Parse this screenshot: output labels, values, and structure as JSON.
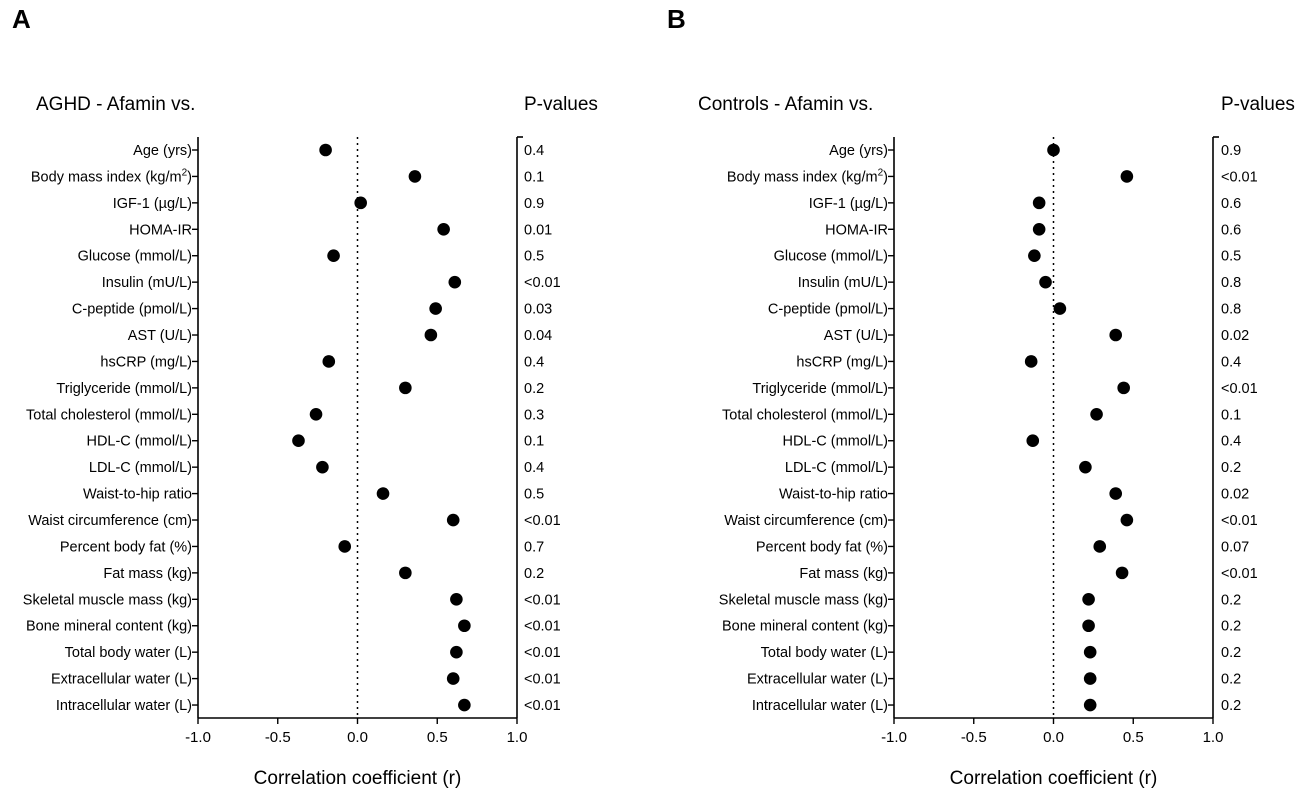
{
  "chart_data": [
    {
      "type": "scatter",
      "panel": "A",
      "title": "AGHD - Afamin vs.",
      "pvalues_header": "P-values",
      "xlabel": "Correlation coefficient (r)",
      "xlim": [
        -1.0,
        1.0
      ],
      "xticks": [
        "-1.0",
        "-0.5",
        "0.0",
        "0.5",
        "1.0"
      ],
      "categories": [
        "Age (yrs)",
        "Body mass index (kg/m²)",
        "IGF-1 (µg/L)",
        "HOMA-IR",
        "Glucose (mmol/L)",
        "Insulin (mU/L)",
        "C-peptide (pmol/L)",
        "AST (U/L)",
        "hsCRP (mg/L)",
        "Triglyceride (mmol/L)",
        "Total cholesterol (mmol/L)",
        "HDL-C (mmol/L)",
        "LDL-C (mmol/L)",
        "Waist-to-hip ratio",
        "Waist circumference (cm)",
        "Percent body fat (%)",
        "Fat mass (kg)",
        "Skeletal muscle mass (kg)",
        "Bone mineral content (kg)",
        "Total body water (L)",
        "Extracellular water (L)",
        "Intracellular water (L)"
      ],
      "values": [
        -0.2,
        0.36,
        0.02,
        0.54,
        -0.15,
        0.61,
        0.49,
        0.46,
        -0.18,
        0.3,
        -0.26,
        -0.37,
        -0.22,
        0.16,
        0.6,
        -0.08,
        0.3,
        0.62,
        0.67,
        0.62,
        0.6,
        0.67
      ],
      "pvalues": [
        "0.4",
        "0.1",
        "0.9",
        "0.01",
        "0.5",
        "<0.01",
        "0.03",
        "0.04",
        "0.4",
        "0.2",
        "0.3",
        "0.1",
        "0.4",
        "0.5",
        "<0.01",
        "0.7",
        "0.2",
        "<0.01",
        "<0.01",
        "<0.01",
        "<0.01",
        "<0.01"
      ]
    },
    {
      "type": "scatter",
      "panel": "B",
      "title": "Controls - Afamin vs.",
      "pvalues_header": "P-values",
      "xlabel": "Correlation coefficient (r)",
      "xlim": [
        -1.0,
        1.0
      ],
      "xticks": [
        "-1.0",
        "-0.5",
        "0.0",
        "0.5",
        "1.0"
      ],
      "categories": [
        "Age (yrs)",
        "Body mass index (kg/m²)",
        "IGF-1 (µg/L)",
        "HOMA-IR",
        "Glucose (mmol/L)",
        "Insulin (mU/L)",
        "C-peptide (pmol/L)",
        "AST (U/L)",
        "hsCRP (mg/L)",
        "Triglyceride (mmol/L)",
        "Total cholesterol (mmol/L)",
        "HDL-C (mmol/L)",
        "LDL-C (mmol/L)",
        "Waist-to-hip ratio",
        "Waist circumference (cm)",
        "Percent body fat (%)",
        "Fat mass (kg)",
        "Skeletal muscle mass (kg)",
        "Bone mineral content (kg)",
        "Total body water (L)",
        "Extracellular water (L)",
        "Intracellular water (L)"
      ],
      "values": [
        0.0,
        0.46,
        -0.09,
        -0.09,
        -0.12,
        -0.05,
        0.04,
        0.39,
        -0.14,
        0.44,
        0.27,
        -0.13,
        0.2,
        0.39,
        0.46,
        0.29,
        0.43,
        0.22,
        0.22,
        0.23,
        0.23,
        0.23
      ],
      "pvalues": [
        "0.9",
        "<0.01",
        "0.6",
        "0.6",
        "0.5",
        "0.8",
        "0.8",
        "0.02",
        "0.4",
        "<0.01",
        "0.1",
        "0.4",
        "0.2",
        "0.02",
        "<0.01",
        "0.07",
        "<0.01",
        "0.2",
        "0.2",
        "0.2",
        "0.2",
        "0.2"
      ]
    }
  ]
}
